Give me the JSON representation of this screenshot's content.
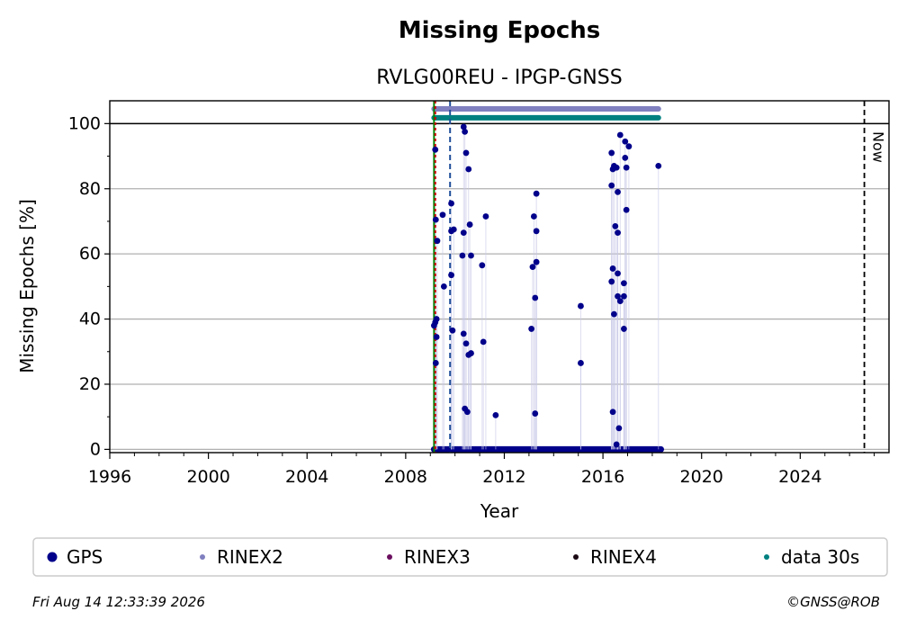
{
  "chart_data": {
    "type": "scatter",
    "title": "Missing Epochs",
    "subtitle": "RVLG00REU - IPGP-GNSS",
    "xlabel": "Year",
    "ylabel": "Missing Epochs [%]",
    "xlim": [
      1996.0,
      2027.6
    ],
    "ylim": [
      -1,
      107
    ],
    "x_ticks": [
      1996,
      2000,
      2004,
      2008,
      2012,
      2016,
      2020,
      2024
    ],
    "y_ticks": [
      0,
      20,
      40,
      60,
      80,
      100
    ],
    "grid": "horizontal",
    "reference_line_y": 100,
    "now_label": "Now",
    "now_x": 2026.6,
    "vlines": [
      {
        "x": 2009.15,
        "color": "#008000",
        "style": "solid"
      },
      {
        "x": 2009.2,
        "color": "#cc0000",
        "style": "dotted"
      },
      {
        "x": 2009.8,
        "color": "#1f4e9a",
        "style": "dashed"
      }
    ],
    "bars": [
      {
        "name": "RINEX2",
        "x_start": 2009.15,
        "x_end": 2018.25,
        "y": 104.5,
        "color": "#8080c0"
      },
      {
        "name": "data 30s",
        "x_start": 2009.15,
        "x_end": 2018.25,
        "y": 101.8,
        "color": "#008080"
      }
    ],
    "zero_band": {
      "x_start": 2009.15,
      "x_end": 2018.35,
      "y": 0
    },
    "series": [
      {
        "name": "GPS",
        "color": "#00008b",
        "points": [
          [
            2009.15,
            38
          ],
          [
            2009.2,
            39
          ],
          [
            2009.25,
            40
          ],
          [
            2009.2,
            92
          ],
          [
            2009.22,
            70.5
          ],
          [
            2009.28,
            64
          ],
          [
            2009.25,
            34.5
          ],
          [
            2009.22,
            26.5
          ],
          [
            2009.5,
            72
          ],
          [
            2009.55,
            50
          ],
          [
            2009.85,
            75.5
          ],
          [
            2009.85,
            67
          ],
          [
            2009.95,
            67.5
          ],
          [
            2009.85,
            53.5
          ],
          [
            2009.9,
            36.5
          ],
          [
            2010.35,
            99
          ],
          [
            2010.4,
            97.5
          ],
          [
            2010.45,
            91
          ],
          [
            2010.55,
            86
          ],
          [
            2010.35,
            66.5
          ],
          [
            2010.6,
            69
          ],
          [
            2010.3,
            59.5
          ],
          [
            2010.65,
            59.5
          ],
          [
            2010.35,
            35.5
          ],
          [
            2010.45,
            32.5
          ],
          [
            2010.55,
            29
          ],
          [
            2010.65,
            29.5
          ],
          [
            2010.4,
            12.5
          ],
          [
            2010.5,
            11.5
          ],
          [
            2011.25,
            71.5
          ],
          [
            2011.1,
            56.5
          ],
          [
            2011.15,
            33
          ],
          [
            2011.65,
            10.5
          ],
          [
            2013.3,
            78.5
          ],
          [
            2013.2,
            71.5
          ],
          [
            2013.3,
            67
          ],
          [
            2013.3,
            57.5
          ],
          [
            2013.15,
            56
          ],
          [
            2013.25,
            46.5
          ],
          [
            2013.1,
            37
          ],
          [
            2013.25,
            11
          ],
          [
            2015.1,
            44
          ],
          [
            2015.1,
            26.5
          ],
          [
            2016.35,
            91
          ],
          [
            2016.45,
            87
          ],
          [
            2016.4,
            86
          ],
          [
            2016.55,
            86.5
          ],
          [
            2016.35,
            81
          ],
          [
            2016.6,
            79
          ],
          [
            2016.7,
            96.5
          ],
          [
            2016.9,
            94.5
          ],
          [
            2017.05,
            93
          ],
          [
            2016.9,
            89.5
          ],
          [
            2016.95,
            86.5
          ],
          [
            2016.5,
            68.5
          ],
          [
            2016.6,
            66.5
          ],
          [
            2016.95,
            73.5
          ],
          [
            2016.4,
            55.5
          ],
          [
            2016.6,
            54
          ],
          [
            2016.35,
            51.5
          ],
          [
            2016.85,
            51
          ],
          [
            2016.6,
            47
          ],
          [
            2016.85,
            47
          ],
          [
            2016.7,
            45.5
          ],
          [
            2016.45,
            41.5
          ],
          [
            2016.85,
            37
          ],
          [
            2016.4,
            11.5
          ],
          [
            2016.65,
            6.5
          ],
          [
            2016.55,
            1.5
          ],
          [
            2018.25,
            87
          ]
        ]
      },
      {
        "name": "RINEX2",
        "color": "#8080c0",
        "points": []
      },
      {
        "name": "RINEX3",
        "color": "#6b0f5e",
        "points": []
      },
      {
        "name": "RINEX4",
        "color": "#1a0a14",
        "points": []
      },
      {
        "name": "data 30s",
        "color": "#008080",
        "points": []
      }
    ]
  },
  "footer": {
    "timestamp": "Fri Aug 14 12:33:39 2026",
    "credit": "©GNSS@ROB"
  }
}
